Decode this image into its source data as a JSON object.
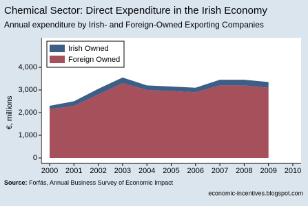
{
  "chart_data": {
    "type": "stacked_area",
    "title": "Chemical Sector: Direct Expenditure in the Irish Economy",
    "subtitle": "Annual expenditure by Irish- and Foreign-Owned Exporting Companies",
    "y_label": "€, millions",
    "x": [
      2000,
      2001,
      2002,
      2003,
      2004,
      2005,
      2006,
      2007,
      2008,
      2009
    ],
    "series": [
      {
        "name": "Irish Owned",
        "color": "#3d5e86",
        "values": [
          150,
          200,
          250,
          250,
          200,
          200,
          200,
          250,
          250,
          250
        ]
      },
      {
        "name": "Foreign Owned",
        "color": "#a6505b",
        "values": [
          2150,
          2300,
          2800,
          3300,
          3000,
          2950,
          2900,
          3200,
          3200,
          3100
        ]
      }
    ],
    "xlim": [
      2000,
      2010
    ],
    "xticks": [
      2000,
      2001,
      2002,
      2003,
      2004,
      2005,
      2006,
      2007,
      2008,
      2009,
      2010
    ],
    "ylim": [
      0,
      4000
    ],
    "yticks": [
      0,
      {
        "value": 1000,
        "label": "1,000"
      },
      {
        "value": 2000,
        "label": "2,000"
      },
      {
        "value": 3000,
        "label": "3,000"
      },
      {
        "value": 4000,
        "label": "4,000"
      }
    ],
    "legend": "top-left",
    "source_label": "Source:",
    "source": " Forfás, Annual Business Survey of Economic Impact",
    "credit": "economic-incentives.blogspot.com"
  }
}
